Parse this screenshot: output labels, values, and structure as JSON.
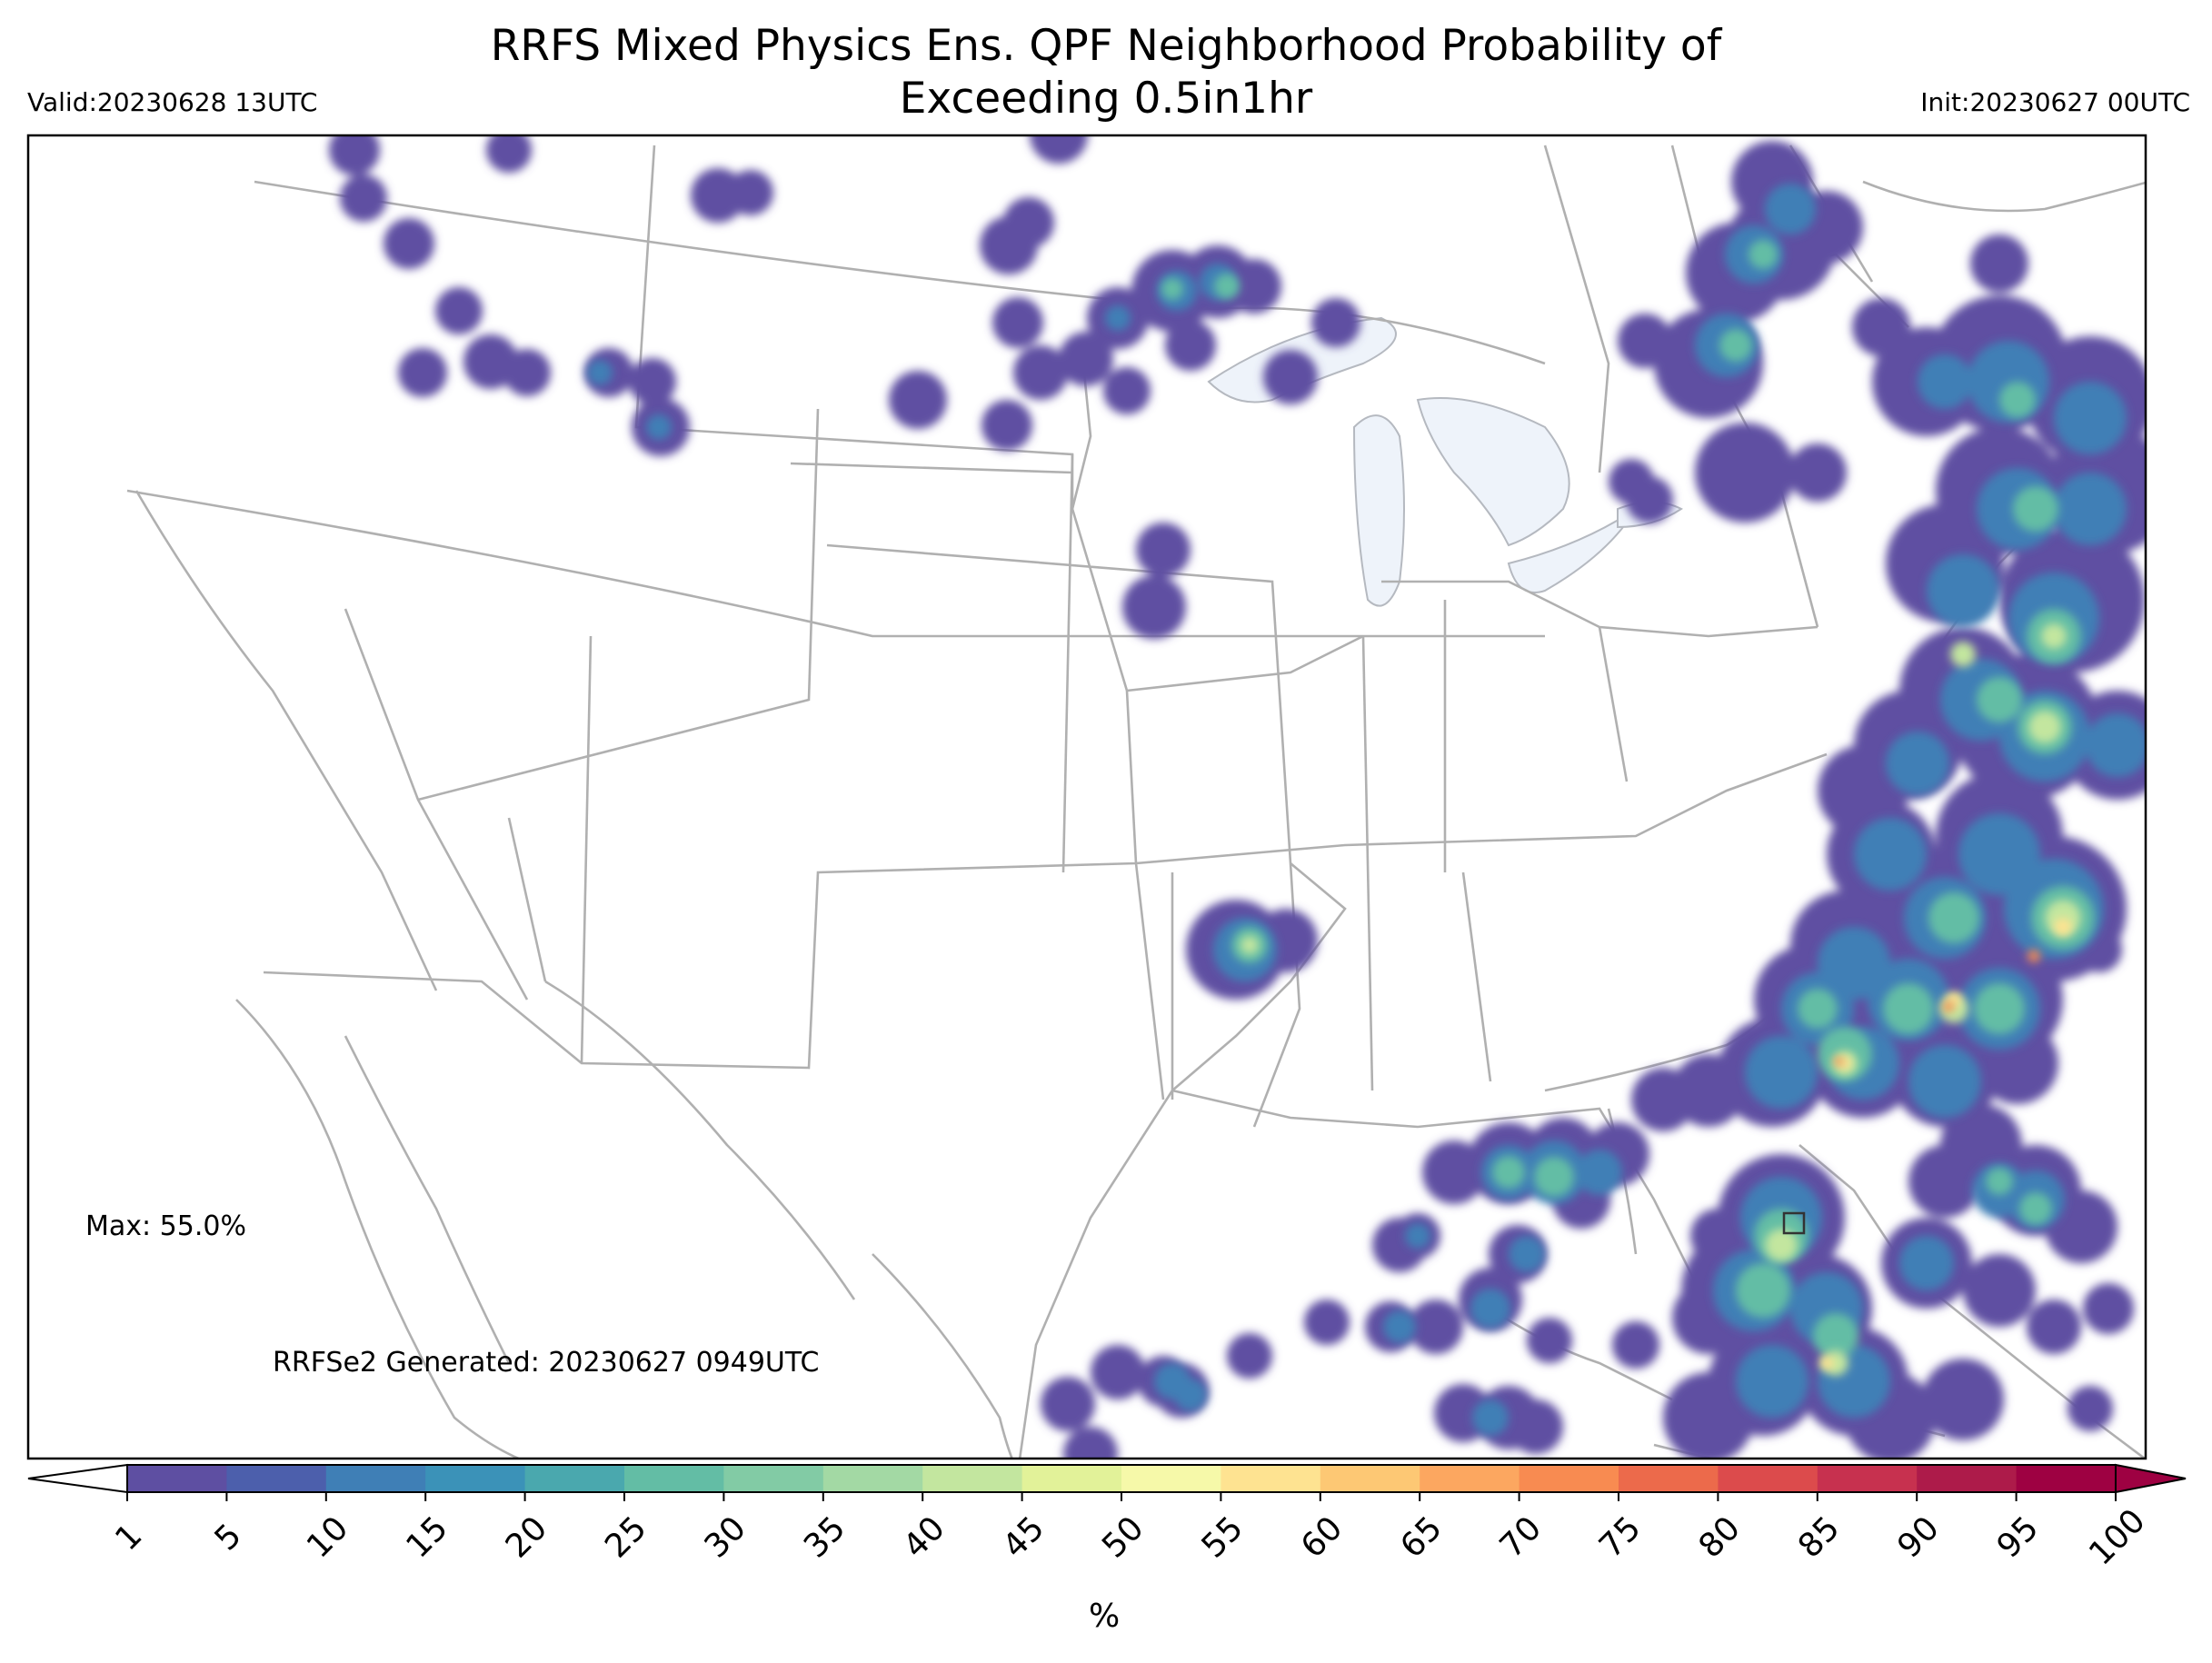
{
  "title_line1": "RRFS Mixed Physics Ens. QPF Neighborhood Probability of",
  "title_line2": "Exceeding 0.5in1hr",
  "valid": "Valid:20230628 13UTC",
  "init": "Init:20230627 00UTC",
  "max_text": "Max: 55.0%",
  "generated": "RRFSe2 Generated: 20230627 0949UTC",
  "colorbar": {
    "unit_label": "%",
    "ticks": [
      "1",
      "5",
      "10",
      "15",
      "20",
      "25",
      "30",
      "35",
      "40",
      "45",
      "50",
      "55",
      "60",
      "65",
      "70",
      "75",
      "80",
      "85",
      "90",
      "95",
      "100"
    ],
    "colors": [
      "#5e4fa2",
      "#4c5fac",
      "#3f7fb6",
      "#3b92b8",
      "#4aa8ae",
      "#63bda5",
      "#82cba5",
      "#a3d9a4",
      "#c3e69f",
      "#e2f299",
      "#f6f9a9",
      "#fee391",
      "#fdc874",
      "#fca760",
      "#f88b51",
      "#ec6a4b",
      "#dc4b4c",
      "#c7314f",
      "#ad1b4a",
      "#9e0142"
    ],
    "extend": "both"
  },
  "legend_gradient": [
    "#5e4fa2",
    "#3f7fb6",
    "#63bda5",
    "#c3e69f",
    "#fee391",
    "#f88b51"
  ]
}
